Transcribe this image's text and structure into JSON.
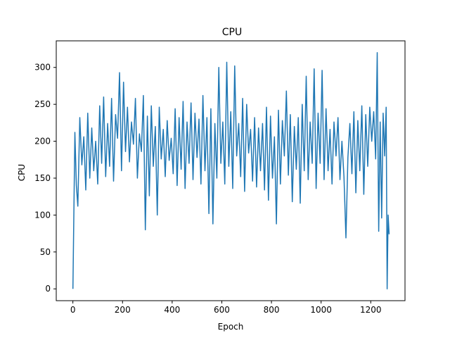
{
  "chart_data": {
    "type": "line",
    "title": "CPU",
    "xlabel": "Epoch",
    "ylabel": "CPU",
    "xlim": [
      -67,
      1338
    ],
    "ylim": [
      -16,
      336
    ],
    "x_ticks": [
      0,
      200,
      400,
      600,
      800,
      1000,
      1200
    ],
    "y_ticks": [
      0,
      50,
      100,
      150,
      200,
      250,
      300
    ],
    "grid": false,
    "legend": "none",
    "series": [
      {
        "color": "#1f77b4",
        "x": [
          0,
          8,
          14,
          20,
          28,
          36,
          44,
          52,
          60,
          68,
          76,
          84,
          92,
          100,
          108,
          116,
          124,
          132,
          140,
          148,
          156,
          164,
          172,
          180,
          188,
          196,
          204,
          212,
          220,
          228,
          236,
          244,
          252,
          260,
          268,
          276,
          284,
          292,
          300,
          308,
          316,
          324,
          332,
          340,
          348,
          356,
          364,
          372,
          380,
          388,
          396,
          404,
          412,
          420,
          428,
          436,
          444,
          452,
          460,
          468,
          476,
          484,
          492,
          500,
          508,
          516,
          524,
          532,
          540,
          548,
          556,
          564,
          572,
          580,
          588,
          596,
          604,
          612,
          620,
          628,
          636,
          644,
          652,
          660,
          668,
          676,
          684,
          692,
          700,
          708,
          716,
          724,
          732,
          740,
          748,
          756,
          764,
          772,
          780,
          788,
          796,
          804,
          812,
          820,
          828,
          836,
          844,
          852,
          860,
          868,
          876,
          884,
          892,
          900,
          908,
          916,
          924,
          932,
          940,
          948,
          956,
          964,
          972,
          980,
          988,
          996,
          1004,
          1012,
          1020,
          1028,
          1036,
          1044,
          1052,
          1060,
          1068,
          1076,
          1084,
          1092,
          1100,
          1108,
          1116,
          1124,
          1132,
          1140,
          1148,
          1156,
          1164,
          1172,
          1180,
          1188,
          1196,
          1204,
          1212,
          1220,
          1226,
          1232,
          1238,
          1244,
          1250,
          1256,
          1262,
          1266,
          1270,
          1274
        ],
        "y": [
          0,
          212,
          140,
          112,
          232,
          168,
          206,
          134,
          238,
          150,
          218,
          160,
          200,
          142,
          248,
          170,
          260,
          152,
          224,
          166,
          258,
          146,
          236,
          204,
          293,
          160,
          280,
          186,
          246,
          172,
          226,
          196,
          258,
          150,
          210,
          186,
          262,
          80,
          234,
          126,
          248,
          166,
          220,
          100,
          246,
          176,
          216,
          152,
          228,
          174,
          204,
          156,
          244,
          140,
          232,
          162,
          254,
          136,
          226,
          170,
          252,
          148,
          238,
          178,
          230,
          142,
          262,
          160,
          232,
          102,
          244,
          88,
          224,
          150,
          300,
          170,
          226,
          142,
          307,
          166,
          240,
          136,
          302,
          180,
          224,
          152,
          258,
          132,
          250,
          184,
          216,
          146,
          232,
          138,
          218,
          160,
          224,
          134,
          246,
          120,
          234,
          150,
          206,
          88,
          242,
          142,
          228,
          180,
          268,
          154,
          236,
          118,
          220,
          162,
          232,
          116,
          250,
          160,
          288,
          148,
          226,
          170,
          298,
          136,
          238,
          170,
          296,
          148,
          244,
          160,
          216,
          142,
          226,
          180,
          232,
          148,
          200,
          152,
          69,
          178,
          224,
          156,
          240,
          130,
          228,
          160,
          248,
          128,
          236,
          166,
          246,
          200,
          240,
          176,
          320,
          78,
          226,
          96,
          238,
          180,
          246,
          0,
          100,
          74
        ]
      }
    ]
  }
}
